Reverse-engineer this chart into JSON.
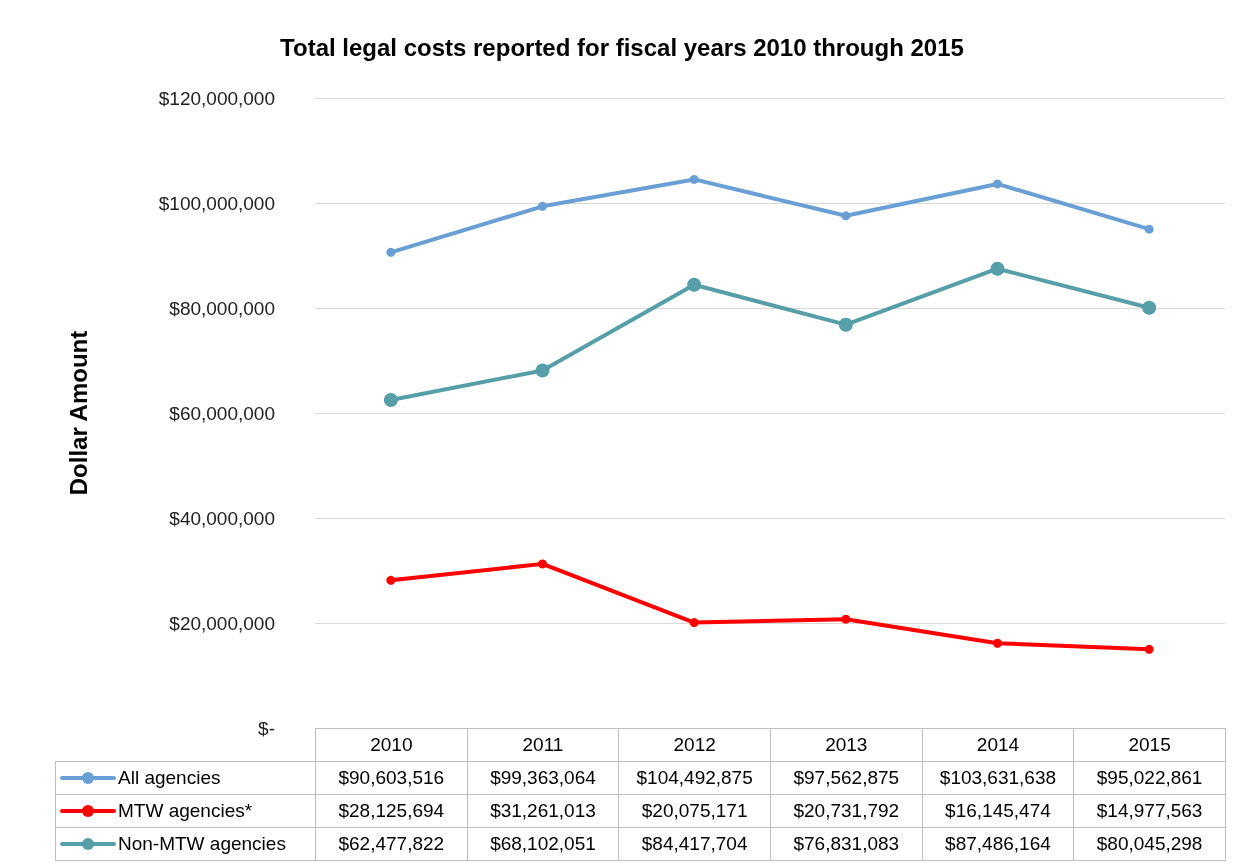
{
  "chart_data": {
    "type": "line",
    "title": "Total legal costs reported for fiscal years 2010 through 2015",
    "ylabel": "Dollar Amount",
    "categories": [
      "2010",
      "2011",
      "2012",
      "2013",
      "2014",
      "2015"
    ],
    "series": [
      {
        "name": "All agencies",
        "color": "#6a9fd6",
        "values": [
          90603516,
          99363064,
          104492875,
          97562875,
          103631638,
          95022861
        ],
        "value_labels": [
          "$90,603,516",
          "$99,363,064",
          "$104,492,875",
          "$97,562,875",
          "$103,631,638",
          "$95,022,861"
        ]
      },
      {
        "name": "MTW agencies*",
        "color": "#ff0000",
        "values": [
          28125694,
          31261013,
          20075171,
          20731792,
          16145474,
          14977563
        ],
        "value_labels": [
          "$28,125,694",
          "$31,261,013",
          "$20,075,171",
          "$20,731,792",
          "$16,145,474",
          "$14,977,563"
        ]
      },
      {
        "name": "Non-MTW agencies",
        "color": "#569fa8",
        "values": [
          62477822,
          68102051,
          84417704,
          76831083,
          87486164,
          80045298
        ],
        "value_labels": [
          "$62,477,822",
          "$68,102,051",
          "$84,417,704",
          "$76,831,083",
          "$87,486,164",
          "$80,045,298"
        ]
      }
    ],
    "ylim": [
      0,
      120000000
    ],
    "yticks": [
      {
        "value": 0,
        "label": "$-"
      },
      {
        "value": 20000000,
        "label": "$20,000,000"
      },
      {
        "value": 40000000,
        "label": "$40,000,000"
      },
      {
        "value": 60000000,
        "label": "$60,000,000"
      },
      {
        "value": 80000000,
        "label": "$80,000,000"
      },
      {
        "value": 100000000,
        "label": "$100,000,000"
      },
      {
        "value": 120000000,
        "label": "$120,000,000"
      }
    ],
    "grid": "y",
    "legend": "bottom",
    "marker": "circle",
    "line_style": "solid"
  }
}
